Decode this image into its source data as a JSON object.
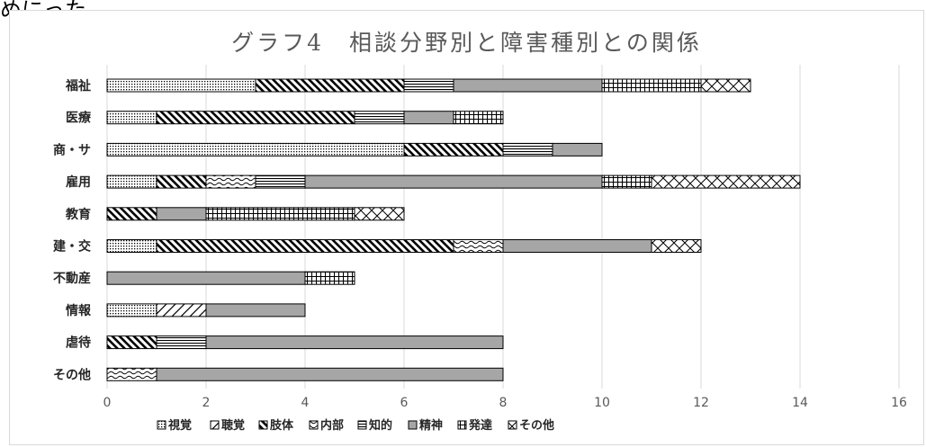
{
  "top_text": "めにった。",
  "chart_data": {
    "type": "bar",
    "orientation": "horizontal",
    "stacked": true,
    "title": "グラフ4　相談分野別と障害種別との関係",
    "categories": [
      "福祉",
      "医療",
      "商・サ",
      "雇用",
      "教育",
      "建・交",
      "不動産",
      "情報",
      "虐待",
      "その他"
    ],
    "series": [
      {
        "name": "視覚",
        "pattern": "dots",
        "values": [
          3,
          1,
          6,
          1,
          0,
          1,
          0,
          1,
          0,
          0
        ]
      },
      {
        "name": "聴覚",
        "pattern": "wide-diag",
        "values": [
          0,
          0,
          0,
          0,
          0,
          0,
          0,
          1,
          0,
          0
        ]
      },
      {
        "name": "肢体",
        "pattern": "diag",
        "values": [
          3,
          4,
          2,
          1,
          1,
          6,
          0,
          0,
          1,
          0
        ]
      },
      {
        "name": "内部",
        "pattern": "wave",
        "values": [
          0,
          0,
          0,
          1,
          0,
          1,
          0,
          0,
          0,
          1
        ]
      },
      {
        "name": "知的",
        "pattern": "hlines",
        "values": [
          1,
          1,
          1,
          1,
          0,
          0,
          0,
          0,
          1,
          0
        ]
      },
      {
        "name": "精神",
        "pattern": "solid",
        "values": [
          3,
          1,
          1,
          6,
          1,
          3,
          4,
          2,
          6,
          7
        ]
      },
      {
        "name": "発達",
        "pattern": "grid",
        "values": [
          2,
          1,
          0,
          1,
          3,
          0,
          1,
          0,
          0,
          0
        ]
      },
      {
        "name": "その他",
        "pattern": "cross",
        "values": [
          1,
          0,
          0,
          3,
          1,
          1,
          0,
          0,
          0,
          0
        ]
      }
    ],
    "xlim": [
      0,
      16
    ],
    "xticks": [
      "0",
      "2",
      "4",
      "6",
      "8",
      "10",
      "12",
      "14",
      "16"
    ],
    "grid": true,
    "legend_position": "bottom",
    "colors": {
      "fill": "#a6a6a6",
      "outline": "#000000",
      "grid": "#d9d9d9",
      "text": "#595959"
    }
  }
}
